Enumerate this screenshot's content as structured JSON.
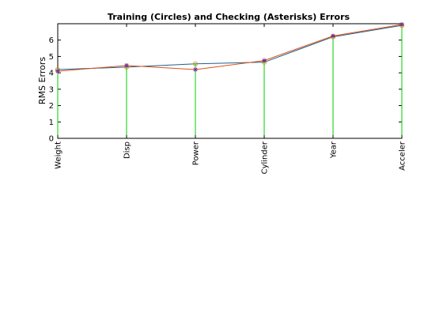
{
  "chart_data": {
    "type": "line",
    "title": "Training (Circles) and Checking (Asterisks) Errors",
    "ylabel": "RMS Errors",
    "xlabel": "",
    "categories": [
      "Weight",
      "Disp",
      "Power",
      "Cylinder",
      "Year",
      "Acceler"
    ],
    "ylim": [
      0,
      7
    ],
    "yticks": [
      0,
      1,
      2,
      3,
      4,
      5,
      6
    ],
    "grid": false,
    "series": [
      {
        "values": [
          4.2,
          4.35,
          4.55,
          4.65,
          6.2,
          6.9
        ],
        "color": "#1f5f8f",
        "marker": "circle"
      },
      {
        "values": [
          4.1,
          4.45,
          4.2,
          4.75,
          6.25,
          6.95
        ],
        "color": "#d95319",
        "marker": "asterisk"
      }
    ],
    "stem_color": "#00cc00"
  }
}
